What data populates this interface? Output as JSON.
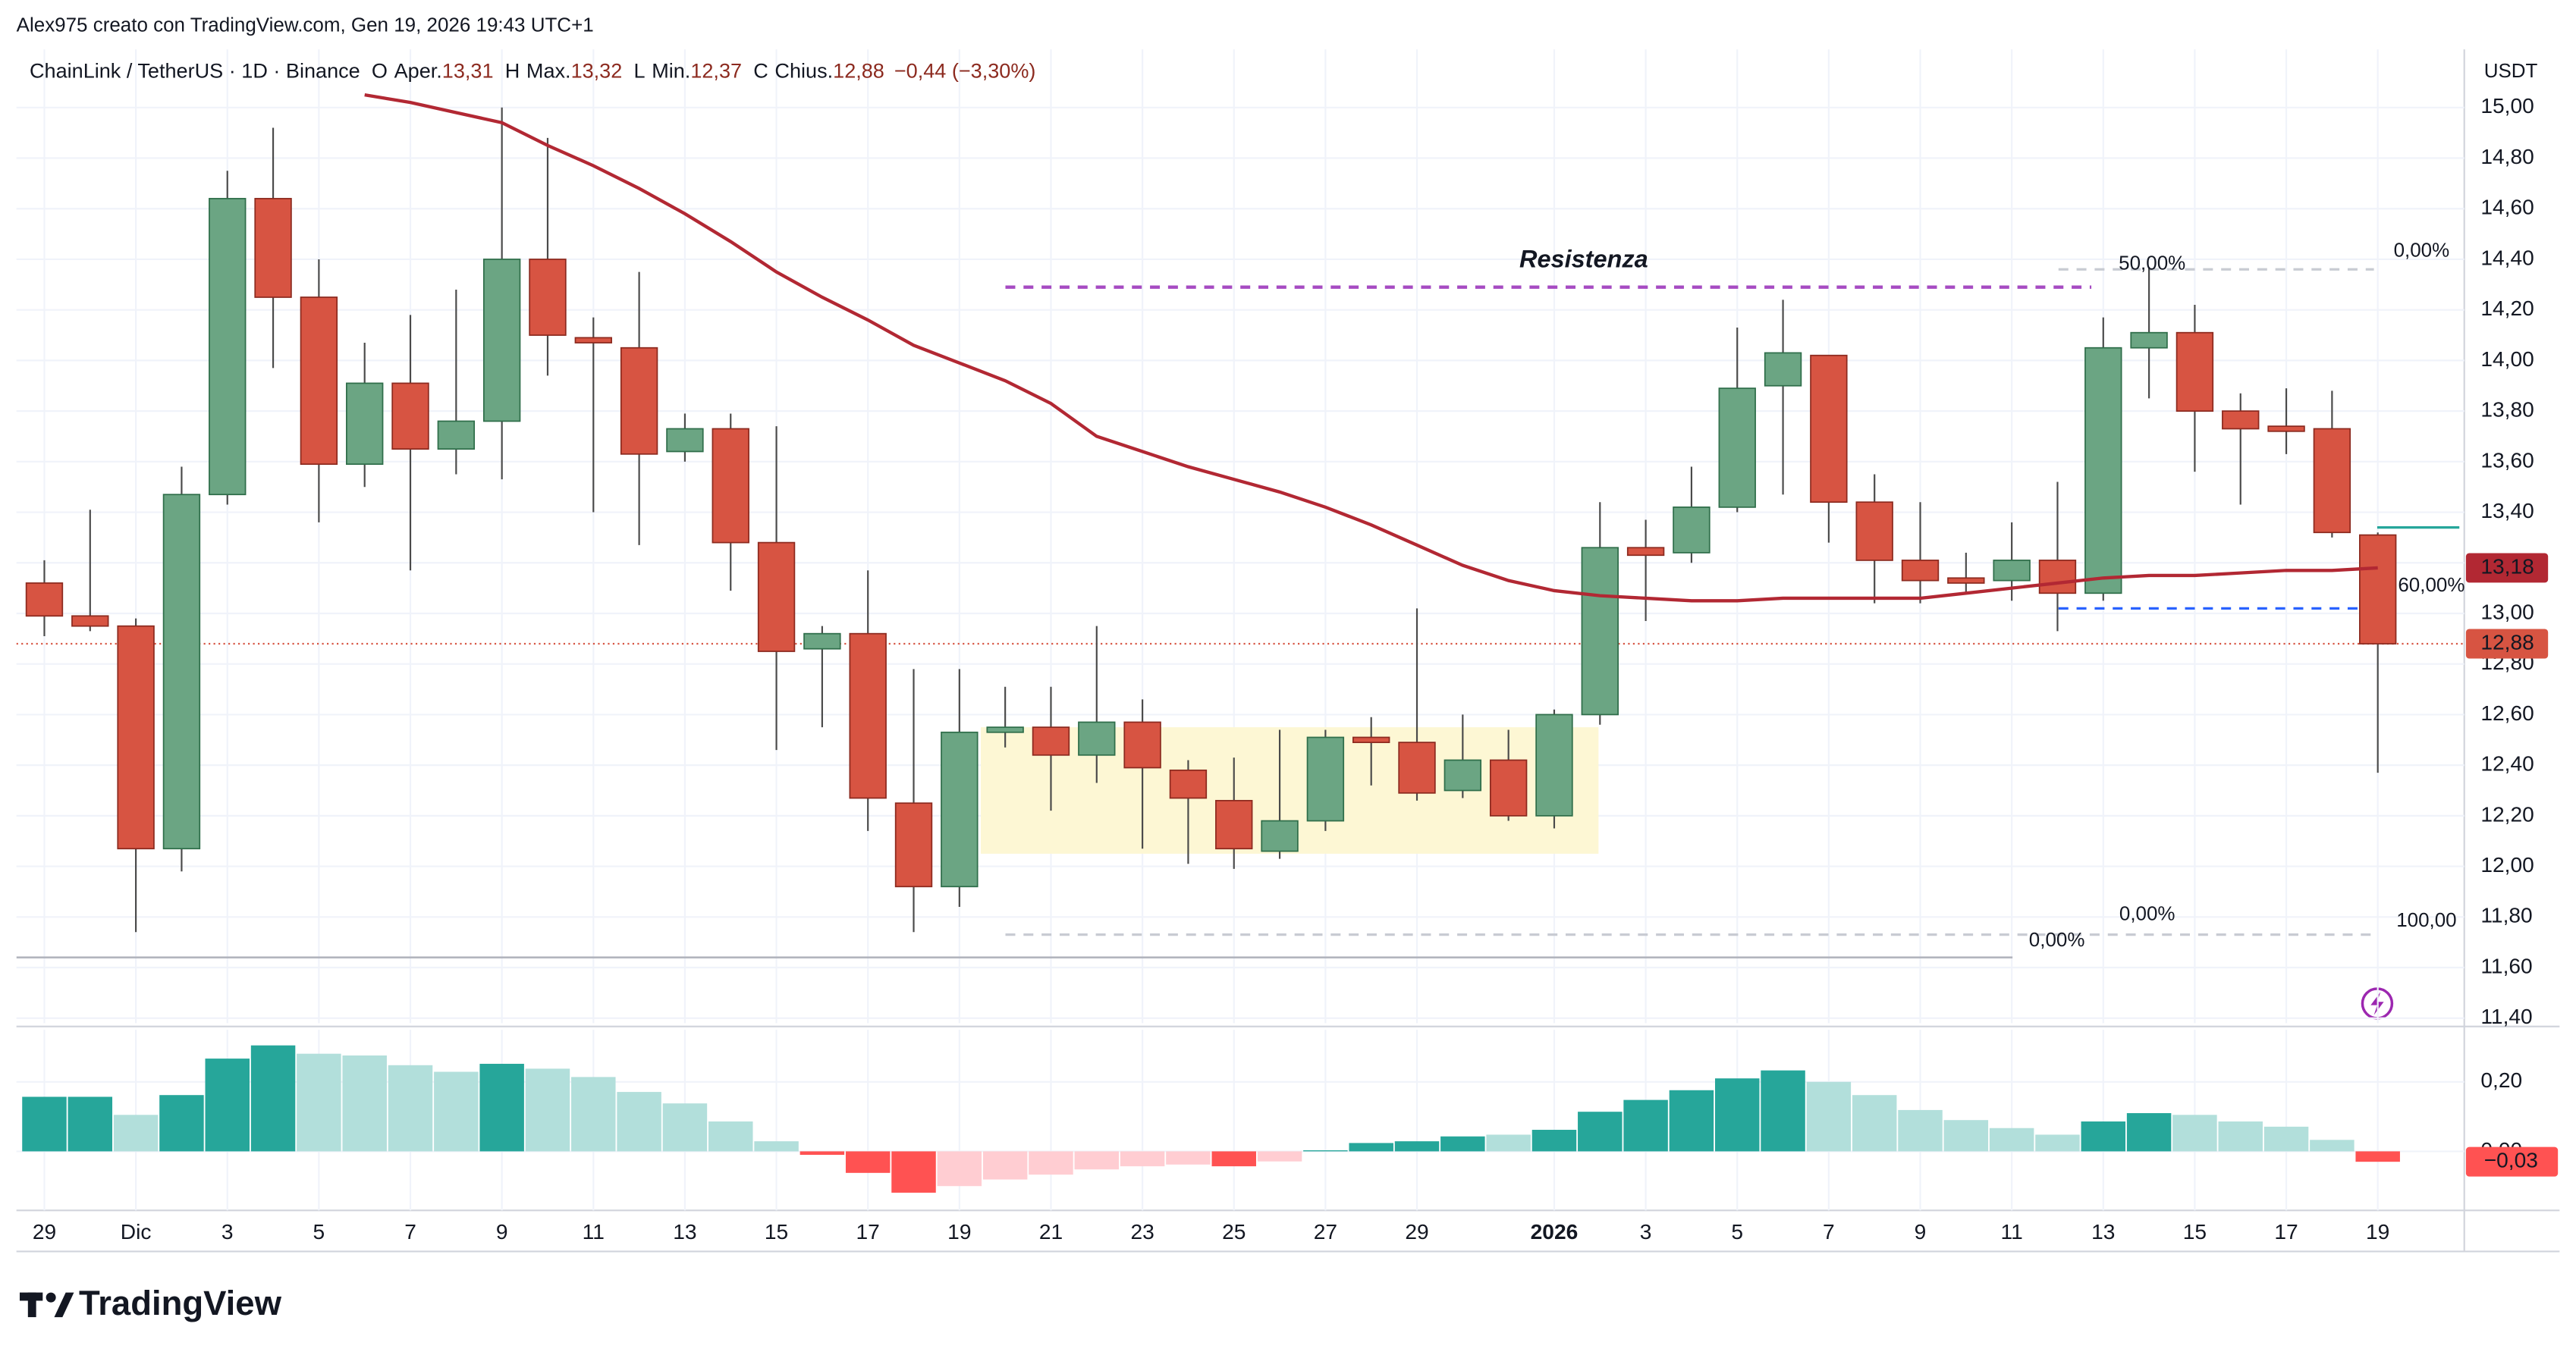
{
  "header": "Alex975 creato con TradingView.com, Gen 19, 2026 19:43 UTC+1",
  "brand": "TradingView",
  "chart_data": {
    "type": "candlestick",
    "symbol": "ChainLink / TetherUS · 1D · Binance",
    "ohlc_legend": [
      {
        "key": "O",
        "label": "Aper.",
        "value": "13,31"
      },
      {
        "key": "H",
        "label": "Max.",
        "value": "13,32"
      },
      {
        "key": "L",
        "label": "Min.",
        "value": "12,37"
      },
      {
        "key": "C",
        "label": "Chius.",
        "value": "12,88"
      }
    ],
    "change": "−0,44 (−3,30%)",
    "currency": "USDT",
    "categories": [
      "29",
      null,
      "Dic",
      null,
      "3",
      null,
      "5",
      null,
      "7",
      null,
      "9",
      null,
      "11",
      null,
      "13",
      null,
      "15",
      null,
      "17",
      null,
      "19",
      null,
      "21",
      null,
      "23",
      null,
      "25",
      null,
      "27",
      null,
      "29",
      null,
      null,
      "2026",
      null,
      "3",
      null,
      "5",
      null,
      "7",
      null,
      "9",
      null,
      "11",
      null,
      "13",
      null,
      "15",
      null,
      "17",
      null,
      "19"
    ],
    "open": [
      13.12,
      12.99,
      12.95,
      12.07,
      13.47,
      14.64,
      14.25,
      13.59,
      13.91,
      13.65,
      13.76,
      14.4,
      14.09,
      14.05,
      13.64,
      13.73,
      13.28,
      12.86,
      12.92,
      12.25,
      11.92,
      12.53,
      12.55,
      12.44,
      12.57,
      12.38,
      12.26,
      12.06,
      12.18,
      12.51,
      12.49,
      12.3,
      12.42,
      12.2,
      12.6,
      13.26,
      13.24,
      13.42,
      13.9,
      14.02,
      13.44,
      13.21,
      13.14,
      13.13,
      13.21,
      13.08,
      14.05,
      14.11,
      13.8,
      13.74,
      13.73,
      13.31
    ],
    "high": [
      13.21,
      13.41,
      12.98,
      13.58,
      14.75,
      14.92,
      14.4,
      14.07,
      14.18,
      14.28,
      15.0,
      14.88,
      14.17,
      14.35,
      13.79,
      13.79,
      13.74,
      12.95,
      13.17,
      12.78,
      12.78,
      12.71,
      12.71,
      12.95,
      12.66,
      12.42,
      12.43,
      12.54,
      12.54,
      12.59,
      13.02,
      12.6,
      12.54,
      12.62,
      13.44,
      13.37,
      13.58,
      14.13,
      14.24,
      14.02,
      13.55,
      13.44,
      13.24,
      13.36,
      13.52,
      14.17,
      14.37,
      14.22,
      13.87,
      13.89,
      13.88,
      13.32
    ],
    "low": [
      12.91,
      12.93,
      11.74,
      11.98,
      13.43,
      13.97,
      13.36,
      13.5,
      13.17,
      13.55,
      13.53,
      13.94,
      13.4,
      13.27,
      13.6,
      13.09,
      12.46,
      12.55,
      12.14,
      11.74,
      11.84,
      12.47,
      12.22,
      12.33,
      12.07,
      12.01,
      11.99,
      12.03,
      12.14,
      12.32,
      12.26,
      12.27,
      12.18,
      12.15,
      12.56,
      12.97,
      13.2,
      13.4,
      13.47,
      13.28,
      13.04,
      13.04,
      13.08,
      13.05,
      12.93,
      13.05,
      13.85,
      13.56,
      13.43,
      13.63,
      13.3,
      12.37
    ],
    "close": [
      12.99,
      12.95,
      12.07,
      13.47,
      14.64,
      14.25,
      13.59,
      13.91,
      13.65,
      13.76,
      14.4,
      14.1,
      14.07,
      13.63,
      13.73,
      13.28,
      12.85,
      12.92,
      12.27,
      11.92,
      12.53,
      12.55,
      12.44,
      12.57,
      12.39,
      12.27,
      12.07,
      12.18,
      12.51,
      12.49,
      12.29,
      12.42,
      12.2,
      12.6,
      13.26,
      13.23,
      13.42,
      13.89,
      14.03,
      13.44,
      13.21,
      13.13,
      13.12,
      13.21,
      13.08,
      14.05,
      14.11,
      13.8,
      13.73,
      13.72,
      13.32,
      12.88
    ],
    "up_color": "#6ba583",
    "up_border": "#2f6e4a",
    "down_color": "#d75442",
    "down_border": "#8c2a1f",
    "wick_color": "#4a4a4a",
    "ma": {
      "color": "#b22833",
      "values": [
        null,
        null,
        null,
        null,
        null,
        null,
        null,
        15.05,
        15.02,
        14.98,
        14.94,
        14.85,
        14.77,
        14.68,
        14.58,
        14.47,
        14.35,
        14.25,
        14.16,
        14.06,
        13.99,
        13.92,
        13.83,
        13.7,
        13.64,
        13.58,
        13.53,
        13.48,
        13.42,
        13.35,
        13.27,
        13.19,
        13.13,
        13.09,
        13.07,
        13.06,
        13.05,
        13.05,
        13.06,
        13.06,
        13.06,
        13.06,
        13.08,
        13.1,
        13.12,
        13.14,
        13.15,
        13.15,
        13.16,
        13.17,
        13.17,
        13.18
      ]
    },
    "ylim": [
      11.38,
      15.23
    ],
    "yticks": [
      {
        "value": 11.4,
        "label": "11,40"
      },
      {
        "value": 11.6,
        "label": "11,60"
      },
      {
        "value": 11.8,
        "label": "11,80"
      },
      {
        "value": 12,
        "label": "12,00"
      },
      {
        "value": 12.2,
        "label": "12,20"
      },
      {
        "value": 12.4,
        "label": "12,40"
      },
      {
        "value": 12.6,
        "label": "12,60"
      },
      {
        "value": 12.8,
        "label": "12,80"
      },
      {
        "value": 13,
        "label": "13,00"
      },
      {
        "value": 13.2,
        "label": "13,20"
      },
      {
        "value": 13.4,
        "label": "13,40"
      },
      {
        "value": 13.6,
        "label": "13,60"
      },
      {
        "value": 13.8,
        "label": "13,80"
      },
      {
        "value": 14,
        "label": "14,00"
      },
      {
        "value": 14.2,
        "label": "14,20"
      },
      {
        "value": 14.4,
        "label": "14,40"
      },
      {
        "value": 14.6,
        "label": "14,60"
      },
      {
        "value": 14.8,
        "label": "14,80"
      },
      {
        "value": 15,
        "label": "15,00"
      }
    ],
    "grid": true,
    "price_labels": [
      {
        "value": 13.18,
        "label": "13,18",
        "color": "#b22833"
      },
      {
        "value": 12.88,
        "label": "12,88",
        "color": "#d75442"
      }
    ],
    "drawings": {
      "resistance_label": "Resistenza",
      "resistance": 14.29,
      "resistance_color": "#a64bc2",
      "box": [
        12.05,
        12.55
      ],
      "box_color": "#fdf7d4",
      "upper_fib": 14.36,
      "mid_fib": 13.02,
      "lower_fib": 11.73,
      "base_line": 11.64,
      "target": 13.34,
      "fib_labels": [
        "50,00%",
        "0,00%",
        "60,00%",
        "0,00%",
        "0,00%",
        "100,00"
      ]
    },
    "hist": {
      "ylim": [
        -0.17,
        0.35
      ],
      "yticks": [
        {
          "value": 0.2,
          "label": "0,20"
        },
        {
          "value": 0,
          "label": "0,00"
        }
      ],
      "values": [
        0.157,
        0.157,
        0.105,
        0.162,
        0.267,
        0.305,
        0.281,
        0.276,
        0.248,
        0.229,
        0.252,
        0.238,
        0.214,
        0.171,
        0.138,
        0.086,
        0.029,
        -0.01,
        -0.062,
        -0.119,
        -0.1,
        -0.081,
        -0.067,
        -0.052,
        -0.043,
        -0.038,
        -0.043,
        -0.029,
        0.003,
        0.024,
        0.029,
        0.043,
        0.048,
        0.062,
        0.114,
        0.148,
        0.176,
        0.21,
        0.233,
        0.2,
        0.162,
        0.119,
        0.09,
        0.067,
        0.048,
        0.086,
        0.11,
        0.105,
        0.086,
        0.071,
        0.033,
        -0.03
      ],
      "colors": [
        "#26a69a",
        "#26a69a",
        "#b2dfdb",
        "#26a69a",
        "#26a69a",
        "#26a69a",
        "#b2dfdb",
        "#b2dfdb",
        "#b2dfdb",
        "#b2dfdb",
        "#26a69a",
        "#b2dfdb",
        "#b2dfdb",
        "#b2dfdb",
        "#b2dfdb",
        "#b2dfdb",
        "#b2dfdb",
        "#ff5252",
        "#ff5252",
        "#ff5252",
        "#ffcdd2",
        "#ffcdd2",
        "#ffcdd2",
        "#ffcdd2",
        "#ffcdd2",
        "#ffcdd2",
        "#ff5252",
        "#ffcdd2",
        "#26a69a",
        "#26a69a",
        "#26a69a",
        "#26a69a",
        "#b2dfdb",
        "#26a69a",
        "#26a69a",
        "#26a69a",
        "#26a69a",
        "#26a69a",
        "#26a69a",
        "#b2dfdb",
        "#b2dfdb",
        "#b2dfdb",
        "#b2dfdb",
        "#b2dfdb",
        "#b2dfdb",
        "#26a69a",
        "#26a69a",
        "#b2dfdb",
        "#b2dfdb",
        "#b2dfdb",
        "#b2dfdb",
        "#ff5252"
      ],
      "value_labels": {
        "51": "−0,03"
      }
    }
  }
}
